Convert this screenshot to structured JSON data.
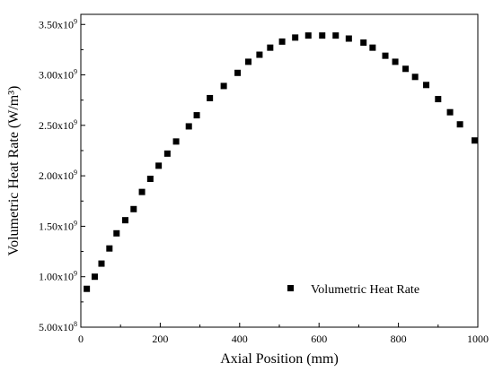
{
  "chart_data": {
    "type": "scatter",
    "xlabel": "Axial Position (mm)",
    "ylabel": "Volumetric Heat  Rate (W/m³)",
    "xlim": [
      0,
      1000
    ],
    "ylim": [
      500000000,
      3600000000
    ],
    "x_ticks": [
      0,
      200,
      400,
      600,
      800,
      1000
    ],
    "x_tick_labels": [
      "0",
      "200",
      "400",
      "600",
      "800",
      "1000"
    ],
    "y_ticks": [
      500000000,
      1000000000,
      1500000000,
      2000000000,
      2500000000,
      3000000000,
      3500000000
    ],
    "y_tick_labels": [
      {
        "mantissa": "5.00x10",
        "exp": "8"
      },
      {
        "mantissa": "1.00x10",
        "exp": "9"
      },
      {
        "mantissa": "1.50x10",
        "exp": "9"
      },
      {
        "mantissa": "2.00x10",
        "exp": "9"
      },
      {
        "mantissa": "2.50x10",
        "exp": "9"
      },
      {
        "mantissa": "3.00x10",
        "exp": "9"
      },
      {
        "mantissa": "3.50x10",
        "exp": "9"
      }
    ],
    "legend": {
      "placement": "bottom-right",
      "entries": [
        "Volumetric Heat  Rate"
      ]
    },
    "grid": false,
    "marker": "square",
    "color": "#000000",
    "series": [
      {
        "name": "Volumetric Heat  Rate",
        "points": [
          [
            15,
            880000000
          ],
          [
            35,
            1000000000
          ],
          [
            52,
            1130000000
          ],
          [
            72,
            1280000000
          ],
          [
            90,
            1430000000
          ],
          [
            112,
            1560000000
          ],
          [
            133,
            1670000000
          ],
          [
            154,
            1840000000
          ],
          [
            175,
            1970000000
          ],
          [
            196,
            2100000000
          ],
          [
            218,
            2220000000
          ],
          [
            240,
            2340000000
          ],
          [
            272,
            2490000000
          ],
          [
            292,
            2600000000
          ],
          [
            325,
            2770000000
          ],
          [
            360,
            2890000000
          ],
          [
            395,
            3020000000
          ],
          [
            422,
            3130000000
          ],
          [
            450,
            3200000000
          ],
          [
            477,
            3270000000
          ],
          [
            507,
            3330000000
          ],
          [
            540,
            3370000000
          ],
          [
            573,
            3390000000
          ],
          [
            608,
            3390000000
          ],
          [
            642,
            3390000000
          ],
          [
            675,
            3360000000
          ],
          [
            712,
            3320000000
          ],
          [
            735,
            3270000000
          ],
          [
            767,
            3190000000
          ],
          [
            792,
            3130000000
          ],
          [
            818,
            3060000000
          ],
          [
            842,
            2980000000
          ],
          [
            870,
            2900000000
          ],
          [
            900,
            2760000000
          ],
          [
            930,
            2630000000
          ],
          [
            955,
            2510000000
          ],
          [
            992,
            2350000000
          ]
        ]
      }
    ]
  }
}
